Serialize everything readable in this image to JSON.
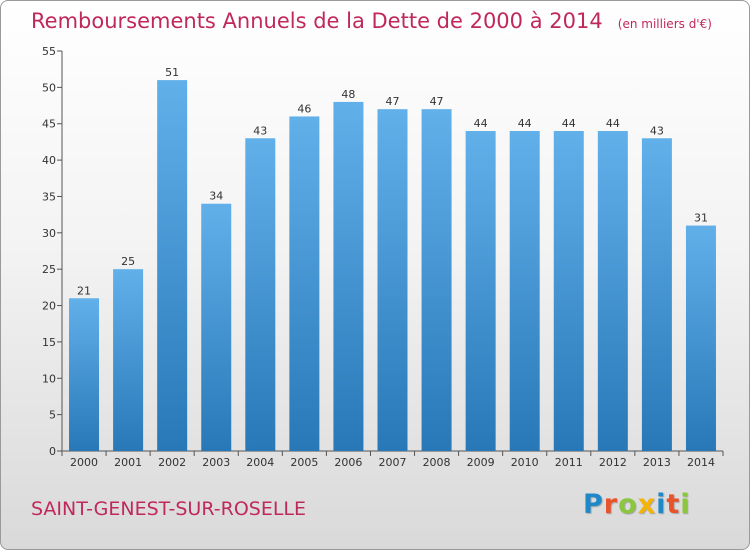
{
  "chart_data": {
    "type": "bar",
    "title": "Remboursements Annuels de la Dette de 2000 à 2014",
    "subtitle": "(en milliers d'€)",
    "xlabel": "",
    "ylabel": "",
    "categories": [
      "2000",
      "2001",
      "2002",
      "2003",
      "2004",
      "2005",
      "2006",
      "2007",
      "2008",
      "2009",
      "2010",
      "2011",
      "2012",
      "2013",
      "2014"
    ],
    "values": [
      21,
      25,
      51,
      34,
      43,
      46,
      48,
      47,
      47,
      44,
      44,
      44,
      44,
      43,
      31
    ],
    "ylim": [
      0,
      55
    ],
    "yticks": [
      0,
      5,
      10,
      15,
      20,
      25,
      30,
      35,
      40,
      45,
      50,
      55
    ],
    "grid": false,
    "legend": "none"
  },
  "commune": "SAINT-GENEST-SUR-ROSELLE",
  "brand": {
    "letters": [
      {
        "char": "P",
        "color": "#1e88c8"
      },
      {
        "char": "r",
        "color": "#e8532c"
      },
      {
        "char": "o",
        "color": "#8cc63f"
      },
      {
        "char": "x",
        "color": "#f4b400"
      },
      {
        "char": "i",
        "color": "#1e88c8"
      },
      {
        "char": "t",
        "color": "#e8532c"
      },
      {
        "char": "i",
        "color": "#8cc63f"
      }
    ]
  },
  "colors": {
    "accent": "#c0285c",
    "bar_top": "#62b0ea",
    "bar_bottom": "#2878b8"
  }
}
